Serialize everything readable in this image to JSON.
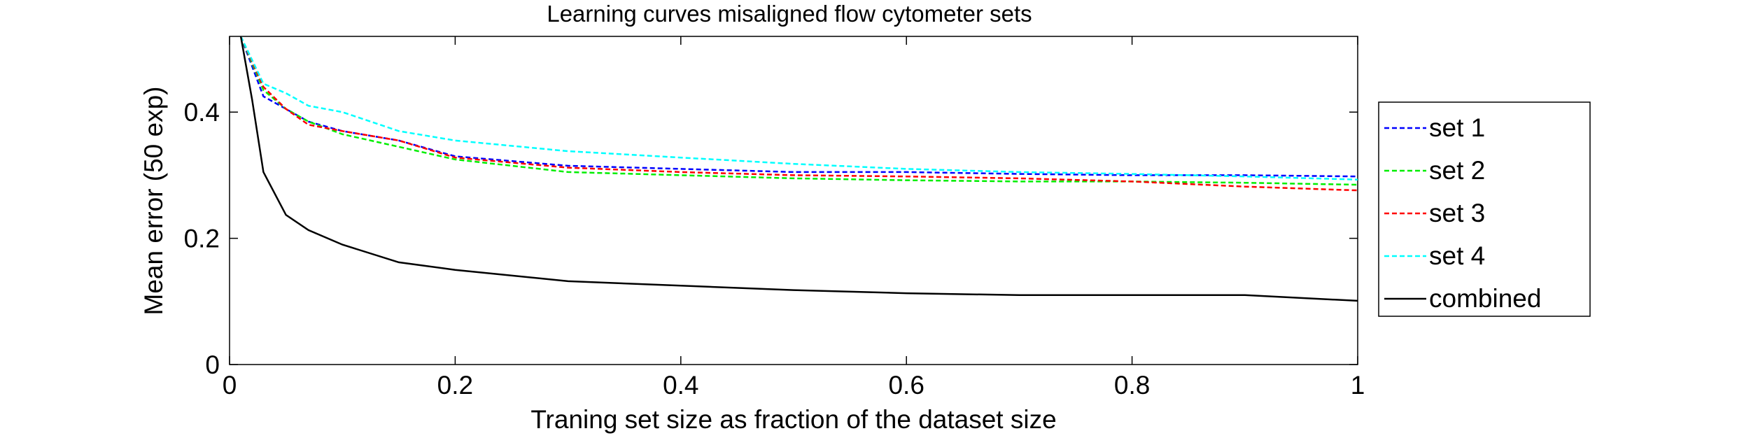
{
  "chart_data": {
    "type": "line",
    "title": "Learning curves misaligned flow cytometer sets",
    "xlabel": "Traning set size as fraction of the dataset size",
    "ylabel": "Mean error (50 exp)",
    "xlim": [
      0,
      1
    ],
    "ylim": [
      0,
      0.52
    ],
    "xticks": [
      0,
      0.2,
      0.4,
      0.6,
      0.8,
      1
    ],
    "xtick_labels": [
      "0",
      "0.2",
      "0.4",
      "0.6",
      "0.8",
      "1"
    ],
    "yticks": [
      0,
      0.2,
      0.4
    ],
    "ytick_labels": [
      "0",
      "0.2",
      "0.4"
    ],
    "grid": false,
    "legend_position": "outside-right",
    "series": [
      {
        "name": "set 1",
        "color": "#0000ff",
        "style": "dashed",
        "x": [
          0.01,
          0.03,
          0.05,
          0.07,
          0.1,
          0.15,
          0.2,
          0.3,
          0.4,
          0.5,
          0.6,
          0.7,
          0.8,
          0.9,
          1.0
        ],
        "y": [
          0.52,
          0.425,
          0.405,
          0.385,
          0.37,
          0.355,
          0.33,
          0.315,
          0.31,
          0.305,
          0.305,
          0.302,
          0.3,
          0.3,
          0.298
        ]
      },
      {
        "name": "set 2",
        "color": "#00ee00",
        "style": "dashed",
        "x": [
          0.01,
          0.03,
          0.05,
          0.07,
          0.1,
          0.15,
          0.2,
          0.3,
          0.4,
          0.5,
          0.6,
          0.7,
          0.8,
          0.9,
          1.0
        ],
        "y": [
          0.52,
          0.435,
          0.405,
          0.385,
          0.365,
          0.345,
          0.325,
          0.305,
          0.3,
          0.295,
          0.292,
          0.29,
          0.29,
          0.288,
          0.285
        ]
      },
      {
        "name": "set 3",
        "color": "#ff0000",
        "style": "dashed",
        "x": [
          0.01,
          0.03,
          0.05,
          0.07,
          0.1,
          0.15,
          0.2,
          0.3,
          0.4,
          0.5,
          0.6,
          0.7,
          0.8,
          0.9,
          1.0
        ],
        "y": [
          0.52,
          0.44,
          0.405,
          0.38,
          0.37,
          0.355,
          0.328,
          0.312,
          0.305,
          0.3,
          0.298,
          0.295,
          0.29,
          0.282,
          0.276
        ]
      },
      {
        "name": "set 4",
        "color": "#00ffff",
        "style": "dashed",
        "x": [
          0.01,
          0.03,
          0.05,
          0.07,
          0.1,
          0.15,
          0.2,
          0.3,
          0.4,
          0.5,
          0.6,
          0.7,
          0.8,
          0.9,
          1.0
        ],
        "y": [
          0.52,
          0.445,
          0.43,
          0.41,
          0.4,
          0.37,
          0.355,
          0.338,
          0.328,
          0.318,
          0.31,
          0.305,
          0.302,
          0.298,
          0.293
        ]
      },
      {
        "name": "combined",
        "color": "#000000",
        "style": "solid",
        "x": [
          0.01,
          0.02,
          0.03,
          0.05,
          0.07,
          0.1,
          0.15,
          0.2,
          0.3,
          0.4,
          0.5,
          0.6,
          0.7,
          0.8,
          0.9,
          1.0
        ],
        "y": [
          0.52,
          0.42,
          0.305,
          0.237,
          0.213,
          0.19,
          0.162,
          0.15,
          0.132,
          0.125,
          0.118,
          0.113,
          0.11,
          0.11,
          0.11,
          0.101
        ]
      }
    ]
  }
}
